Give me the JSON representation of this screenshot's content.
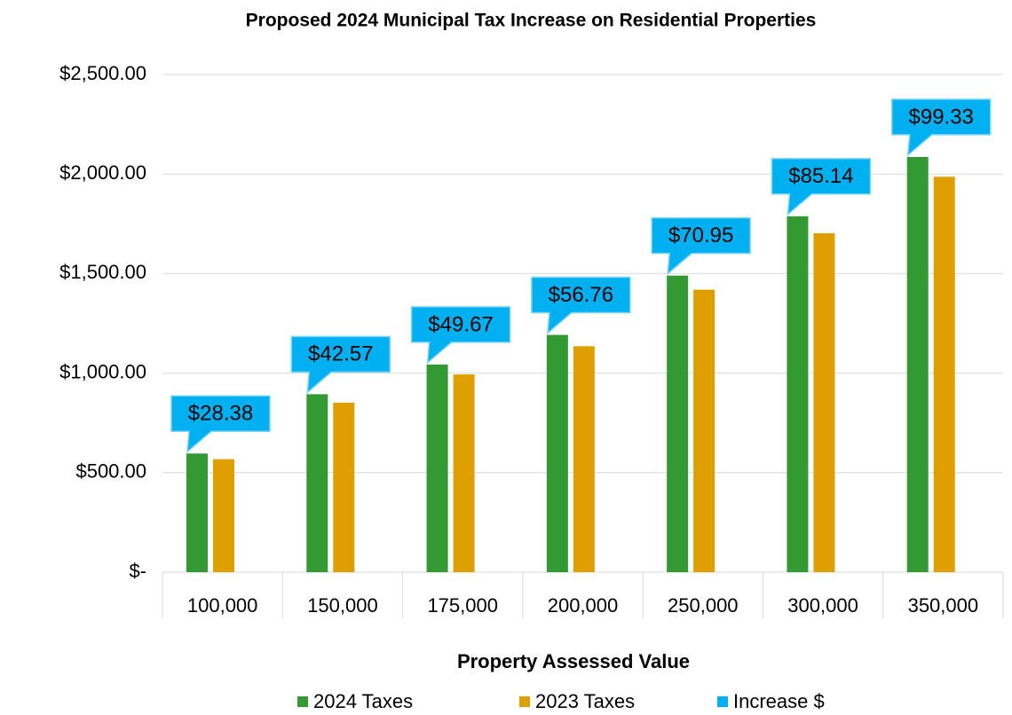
{
  "chart_data": {
    "type": "bar",
    "title": "Proposed 2024 Municipal Tax Increase on Residential Properties",
    "x_label": "Property Assessed Value",
    "categories": [
      "100,000",
      "150,000",
      "175,000",
      "200,000",
      "250,000",
      "300,000",
      "350,000"
    ],
    "series": [
      {
        "name": "2024 Taxes",
        "color": "#339933",
        "values": [
          595.98,
          893.97,
          1043.07,
          1191.96,
          1489.95,
          1787.94,
          2085.93
        ]
      },
      {
        "name": "2023 Taxes",
        "color": "#e09f00",
        "values": [
          567.6,
          851.4,
          993.4,
          1135.2,
          1419,
          1702.8,
          1986.6
        ]
      },
      {
        "name": "Increase $",
        "color": "#00b0f0",
        "values": [
          28.38,
          42.57,
          49.67,
          56.76,
          70.95,
          85.14,
          99.33
        ],
        "value_labels": [
          "$28.38",
          "$42.57",
          "$49.67",
          "$56.76",
          "$70.95",
          "$85.14",
          "$99.33"
        ]
      }
    ],
    "ylim": [
      0,
      2500
    ],
    "yticks": [
      {
        "value": 0,
        "label": "$-"
      },
      {
        "value": 500,
        "label": "$500.00"
      },
      {
        "value": 1000,
        "label": "$1,000.00"
      },
      {
        "value": 1500,
        "label": "$1,500.00"
      },
      {
        "value": 2000,
        "label": "$2,000.00"
      },
      {
        "value": 2500,
        "label": "$2,500.00"
      }
    ],
    "grid": true,
    "legend": "bottom"
  }
}
